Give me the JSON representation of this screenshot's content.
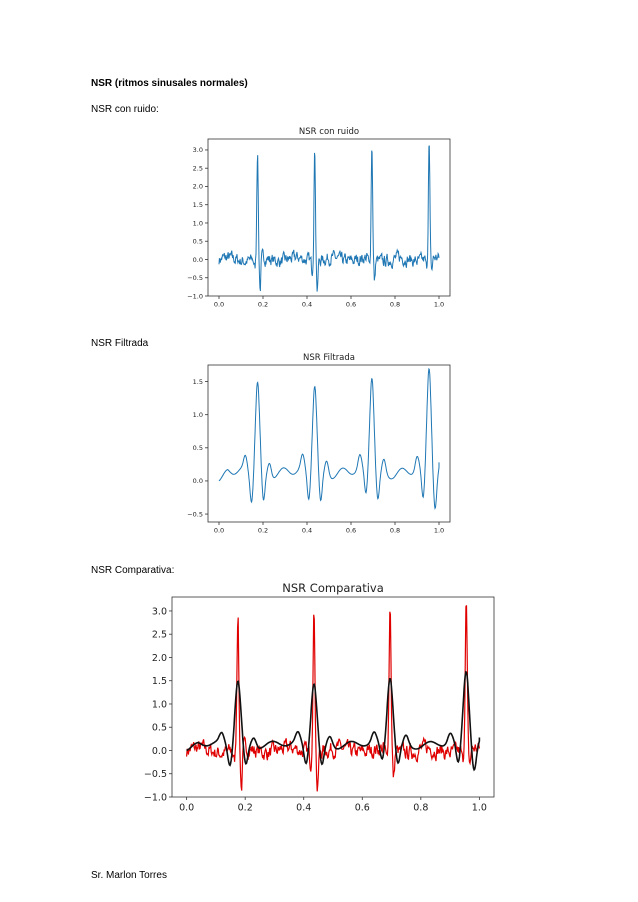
{
  "heading": "NSR (ritmos sinusales normales)",
  "captions": {
    "noisy": "NSR con ruido:",
    "filtered": "NSR Filtrada",
    "comparison": "NSR Comparativa:"
  },
  "footer": "Sr. Marlon Torres",
  "colors": {
    "raw": "#1f77b4",
    "raw_red": "#e00000",
    "filtered_black": "#111111"
  },
  "chart_data": [
    {
      "type": "line",
      "title": "NSR con ruido",
      "xlim": [
        -0.05,
        1.05
      ],
      "ylim": [
        -1.0,
        3.3
      ],
      "xticks": [
        "0.0",
        "0.2",
        "0.4",
        "0.6",
        "0.8",
        "1.0"
      ],
      "yticks": [
        "−1.0",
        "−0.5",
        "0.0",
        "0.5",
        "1.0",
        "1.5",
        "2.0",
        "2.5",
        "3.0"
      ],
      "r_peaks": [
        {
          "x": 0.175,
          "peak": 2.95,
          "trough": -0.85
        },
        {
          "x": 0.435,
          "peak": 3.08,
          "trough": -0.82
        },
        {
          "x": 0.695,
          "peak": 3.15,
          "trough": -0.6
        },
        {
          "x": 0.955,
          "peak": 3.2,
          "trough": -0.35
        }
      ],
      "baseline_noise": 0.12,
      "series": [
        {
          "color": "#1f77b4"
        }
      ]
    },
    {
      "type": "line",
      "title": "NSR Filtrada",
      "xlim": [
        -0.05,
        1.05
      ],
      "ylim": [
        -0.62,
        1.75
      ],
      "xticks": [
        "0.0",
        "0.2",
        "0.4",
        "0.6",
        "0.8",
        "1.0"
      ],
      "yticks": [
        "−0.5",
        "0.0",
        "0.5",
        "1.0",
        "1.5"
      ],
      "r_peaks": [
        {
          "x": 0.175,
          "peak": 1.42,
          "trough": -0.45
        },
        {
          "x": 0.435,
          "peak": 1.38,
          "trough": -0.45
        },
        {
          "x": 0.695,
          "peak": 1.5,
          "trough": -0.4
        },
        {
          "x": 0.955,
          "peak": 1.62,
          "trough": -0.52
        }
      ],
      "series": [
        {
          "color": "#1f77b4"
        }
      ]
    },
    {
      "type": "line",
      "title": "NSR Comparativa",
      "xlim": [
        -0.05,
        1.05
      ],
      "ylim": [
        -1.0,
        3.3
      ],
      "xticks": [
        "0.0",
        "0.2",
        "0.4",
        "0.6",
        "0.8",
        "1.0"
      ],
      "yticks": [
        "−1.0",
        "−0.5",
        "0.0",
        "0.5",
        "1.0",
        "1.5",
        "2.0",
        "2.5",
        "3.0"
      ],
      "series": [
        {
          "color": "#e00000",
          "kind": "raw"
        },
        {
          "color": "#111111",
          "kind": "filtered"
        }
      ]
    }
  ]
}
